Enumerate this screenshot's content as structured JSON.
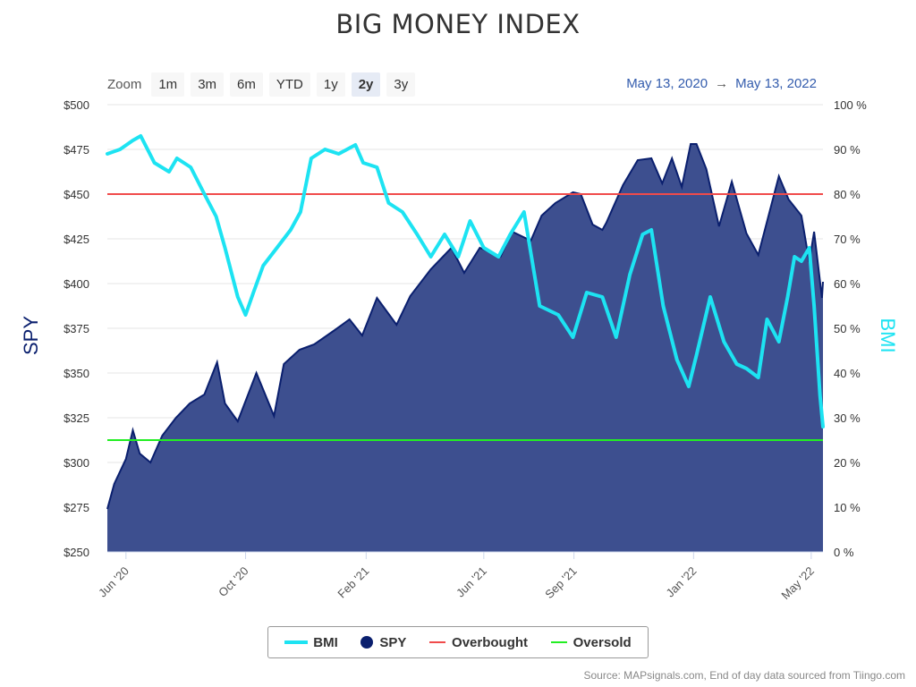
{
  "title": "BIG MONEY INDEX",
  "zoom": {
    "label": "Zoom",
    "buttons": [
      "1m",
      "3m",
      "6m",
      "YTD",
      "1y",
      "2y",
      "3y"
    ],
    "active": "2y"
  },
  "range": {
    "from": "May 13, 2020",
    "arrow": "→",
    "to": "May 13, 2022"
  },
  "source": "Source: MAPsignals.com, End of day data sourced from Tiingo.com",
  "legend": {
    "bmi": "BMI",
    "spy": "SPY",
    "overbought": "Overbought",
    "oversold": "Oversold"
  },
  "colors": {
    "bmi": "#1de3f2",
    "spy_fill": "#3d4f8f",
    "spy_line": "#0a1f6e",
    "overbought": "#f04b4b",
    "oversold": "#22ee22",
    "yaxis_left": "#0a1f6e",
    "yaxis_right": "#1de3f2"
  },
  "chart_data": {
    "type": "area",
    "title": "BIG MONEY INDEX",
    "xlabel": "",
    "ylabel_left": "SPY",
    "ylabel_right": "BMI",
    "x_range": [
      "2020-05-13",
      "2022-05-13"
    ],
    "ylim_left": [
      250,
      500
    ],
    "ylim_right": [
      0,
      100
    ],
    "y_ticks_left": [
      "$250",
      "$275",
      "$300",
      "$325",
      "$350",
      "$375",
      "$400",
      "$425",
      "$450",
      "$475",
      "$500"
    ],
    "y_ticks_right": [
      "0 %",
      "10 %",
      "20 %",
      "30 %",
      "40 %",
      "50 %",
      "60 %",
      "70 %",
      "80 %",
      "90 %",
      "100 %"
    ],
    "x_ticks": [
      {
        "date": "2020-06-01",
        "label": "Jun '20"
      },
      {
        "date": "2020-10-01",
        "label": "Oct '20"
      },
      {
        "date": "2021-02-01",
        "label": "Feb '21"
      },
      {
        "date": "2021-06-01",
        "label": "Jun '21"
      },
      {
        "date": "2021-09-01",
        "label": "Sep '21"
      },
      {
        "date": "2022-01-01",
        "label": "Jan '22"
      },
      {
        "date": "2022-05-01",
        "label": "May '22"
      }
    ],
    "grid": true,
    "legend_position": "bottom-center",
    "overbought_level": 80,
    "oversold_level": 25,
    "series": [
      {
        "name": "SPY",
        "axis": "left",
        "points": [
          [
            "2020-05-13",
            274
          ],
          [
            "2020-05-20",
            288
          ],
          [
            "2020-06-01",
            302
          ],
          [
            "2020-06-08",
            318
          ],
          [
            "2020-06-15",
            305
          ],
          [
            "2020-06-26",
            300
          ],
          [
            "2020-07-08",
            315
          ],
          [
            "2020-07-22",
            325
          ],
          [
            "2020-08-05",
            333
          ],
          [
            "2020-08-20",
            338
          ],
          [
            "2020-09-02",
            356
          ],
          [
            "2020-09-10",
            333
          ],
          [
            "2020-09-23",
            323
          ],
          [
            "2020-10-12",
            350
          ],
          [
            "2020-10-30",
            326
          ],
          [
            "2020-11-09",
            355
          ],
          [
            "2020-11-25",
            363
          ],
          [
            "2020-12-10",
            366
          ],
          [
            "2020-12-31",
            374
          ],
          [
            "2021-01-15",
            380
          ],
          [
            "2021-01-28",
            371
          ],
          [
            "2021-02-12",
            392
          ],
          [
            "2021-03-04",
            377
          ],
          [
            "2021-03-18",
            393
          ],
          [
            "2021-04-08",
            408
          ],
          [
            "2021-04-29",
            420
          ],
          [
            "2021-05-12",
            406
          ],
          [
            "2021-05-28",
            420
          ],
          [
            "2021-06-18",
            415
          ],
          [
            "2021-06-30",
            429
          ],
          [
            "2021-07-19",
            424
          ],
          [
            "2021-07-30",
            438
          ],
          [
            "2021-08-13",
            445
          ],
          [
            "2021-08-31",
            451
          ],
          [
            "2021-09-08",
            450
          ],
          [
            "2021-09-20",
            433
          ],
          [
            "2021-09-30",
            430
          ],
          [
            "2021-10-04",
            434
          ],
          [
            "2021-10-21",
            455
          ],
          [
            "2021-11-05",
            469
          ],
          [
            "2021-11-19",
            470
          ],
          [
            "2021-11-30",
            456
          ],
          [
            "2021-12-10",
            470
          ],
          [
            "2021-12-20",
            454
          ],
          [
            "2021-12-29",
            478
          ],
          [
            "2022-01-04",
            478
          ],
          [
            "2022-01-14",
            464
          ],
          [
            "2022-01-27",
            432
          ],
          [
            "2022-02-09",
            457
          ],
          [
            "2022-02-24",
            428
          ],
          [
            "2022-03-08",
            416
          ],
          [
            "2022-03-29",
            460
          ],
          [
            "2022-04-08",
            447
          ],
          [
            "2022-04-21",
            438
          ],
          [
            "2022-04-29",
            412
          ],
          [
            "2022-05-04",
            429
          ],
          [
            "2022-05-12",
            392
          ],
          [
            "2022-05-13",
            401
          ]
        ]
      },
      {
        "name": "BMI",
        "axis": "right",
        "points": [
          [
            "2020-05-13",
            89
          ],
          [
            "2020-05-26",
            90
          ],
          [
            "2020-06-08",
            92
          ],
          [
            "2020-06-16",
            93
          ],
          [
            "2020-06-30",
            87
          ],
          [
            "2020-07-15",
            85
          ],
          [
            "2020-07-23",
            88
          ],
          [
            "2020-08-06",
            86
          ],
          [
            "2020-08-20",
            80
          ],
          [
            "2020-09-01",
            75
          ],
          [
            "2020-09-10",
            68
          ],
          [
            "2020-09-23",
            57
          ],
          [
            "2020-10-01",
            53
          ],
          [
            "2020-10-09",
            58
          ],
          [
            "2020-10-19",
            64
          ],
          [
            "2020-11-02",
            68
          ],
          [
            "2020-11-16",
            72
          ],
          [
            "2020-11-26",
            76
          ],
          [
            "2020-12-07",
            88
          ],
          [
            "2020-12-21",
            90
          ],
          [
            "2021-01-04",
            89
          ],
          [
            "2021-01-21",
            91
          ],
          [
            "2021-01-29",
            87
          ],
          [
            "2021-02-12",
            86
          ],
          [
            "2021-02-24",
            78
          ],
          [
            "2021-03-10",
            76
          ],
          [
            "2021-03-25",
            71
          ],
          [
            "2021-04-08",
            66
          ],
          [
            "2021-04-22",
            71
          ],
          [
            "2021-05-06",
            66
          ],
          [
            "2021-05-18",
            74
          ],
          [
            "2021-06-01",
            68
          ],
          [
            "2021-06-16",
            66
          ],
          [
            "2021-06-28",
            71
          ],
          [
            "2021-07-12",
            76
          ],
          [
            "2021-07-28",
            55
          ],
          [
            "2021-08-16",
            53
          ],
          [
            "2021-08-31",
            48
          ],
          [
            "2021-09-14",
            58
          ],
          [
            "2021-09-30",
            57
          ],
          [
            "2021-10-14",
            48
          ],
          [
            "2021-10-28",
            62
          ],
          [
            "2021-11-10",
            71
          ],
          [
            "2021-11-19",
            72
          ],
          [
            "2021-12-01",
            55
          ],
          [
            "2021-12-15",
            43
          ],
          [
            "2021-12-27",
            37
          ],
          [
            "2022-01-04",
            44
          ],
          [
            "2022-01-18",
            57
          ],
          [
            "2022-02-01",
            47
          ],
          [
            "2022-02-14",
            42
          ],
          [
            "2022-02-24",
            41
          ],
          [
            "2022-03-08",
            39
          ],
          [
            "2022-03-17",
            52
          ],
          [
            "2022-03-29",
            47
          ],
          [
            "2022-04-07",
            57
          ],
          [
            "2022-04-14",
            66
          ],
          [
            "2022-04-21",
            65
          ],
          [
            "2022-04-29",
            68
          ],
          [
            "2022-05-04",
            55
          ],
          [
            "2022-05-10",
            35
          ],
          [
            "2022-05-13",
            28
          ]
        ]
      }
    ]
  }
}
